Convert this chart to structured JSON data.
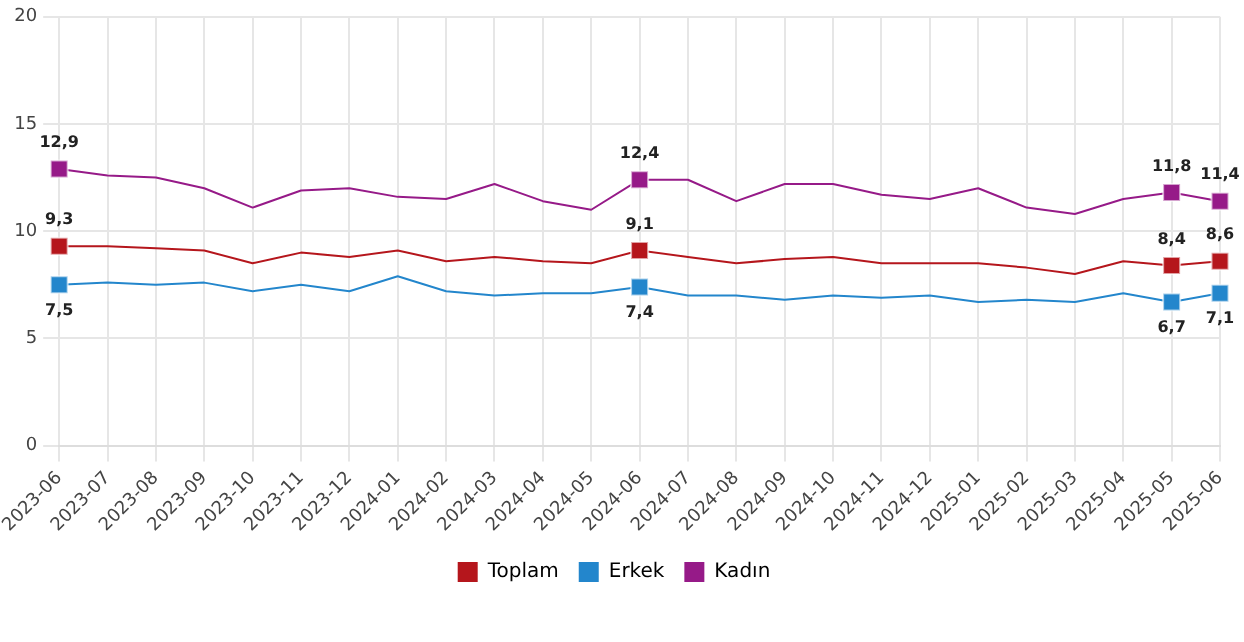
{
  "chart_data": {
    "type": "line",
    "categories": [
      "2023-06",
      "2023-07",
      "2023-08",
      "2023-09",
      "2023-10",
      "2023-11",
      "2023-12",
      "2024-01",
      "2024-02",
      "2024-03",
      "2024-04",
      "2024-05",
      "2024-06",
      "2024-07",
      "2024-08",
      "2024-09",
      "2024-10",
      "2024-11",
      "2024-12",
      "2025-01",
      "2025-02",
      "2025-03",
      "2025-04",
      "2025-05",
      "2025-06"
    ],
    "series": [
      {
        "name": "Toplam",
        "color": "#b5161c",
        "values": [
          9.3,
          9.3,
          9.2,
          9.1,
          8.5,
          9.0,
          8.8,
          9.1,
          8.6,
          8.8,
          8.6,
          8.5,
          9.1,
          8.8,
          8.5,
          8.7,
          8.8,
          8.5,
          8.5,
          8.5,
          8.3,
          8.0,
          8.6,
          8.4,
          8.6
        ],
        "value_labels": [
          "9,3",
          null,
          null,
          null,
          null,
          null,
          null,
          null,
          null,
          null,
          null,
          null,
          "9,1",
          null,
          null,
          null,
          null,
          null,
          null,
          null,
          null,
          null,
          null,
          "8,4",
          "8,6"
        ]
      },
      {
        "name": "Erkek",
        "color": "#2386cc",
        "values": [
          7.5,
          7.6,
          7.5,
          7.6,
          7.2,
          7.5,
          7.2,
          7.9,
          7.2,
          7.0,
          7.1,
          7.1,
          7.4,
          7.0,
          7.0,
          6.8,
          7.0,
          6.9,
          7.0,
          6.7,
          6.8,
          6.7,
          7.1,
          6.7,
          7.1
        ],
        "value_labels": [
          "7,5",
          null,
          null,
          null,
          null,
          null,
          null,
          null,
          null,
          null,
          null,
          null,
          "7,4",
          null,
          null,
          null,
          null,
          null,
          null,
          null,
          null,
          null,
          null,
          "6,7",
          "7,1"
        ]
      },
      {
        "name": "Kadın",
        "color": "#961a88",
        "values": [
          12.9,
          12.6,
          12.5,
          12.0,
          11.1,
          11.9,
          12.0,
          11.6,
          11.5,
          12.2,
          11.4,
          11.0,
          12.4,
          12.4,
          11.4,
          12.2,
          12.2,
          11.7,
          11.5,
          12.0,
          11.1,
          10.8,
          11.5,
          11.8,
          11.4
        ],
        "value_labels": [
          "12,9",
          null,
          null,
          null,
          null,
          null,
          null,
          null,
          null,
          null,
          null,
          null,
          "12,4",
          null,
          null,
          null,
          null,
          null,
          null,
          null,
          null,
          null,
          null,
          "11,8",
          "11,4"
        ]
      }
    ],
    "ylim": [
      0,
      20
    ],
    "yticks": [
      0,
      5,
      10,
      15,
      20
    ],
    "grid": true,
    "legend": "bottom"
  }
}
